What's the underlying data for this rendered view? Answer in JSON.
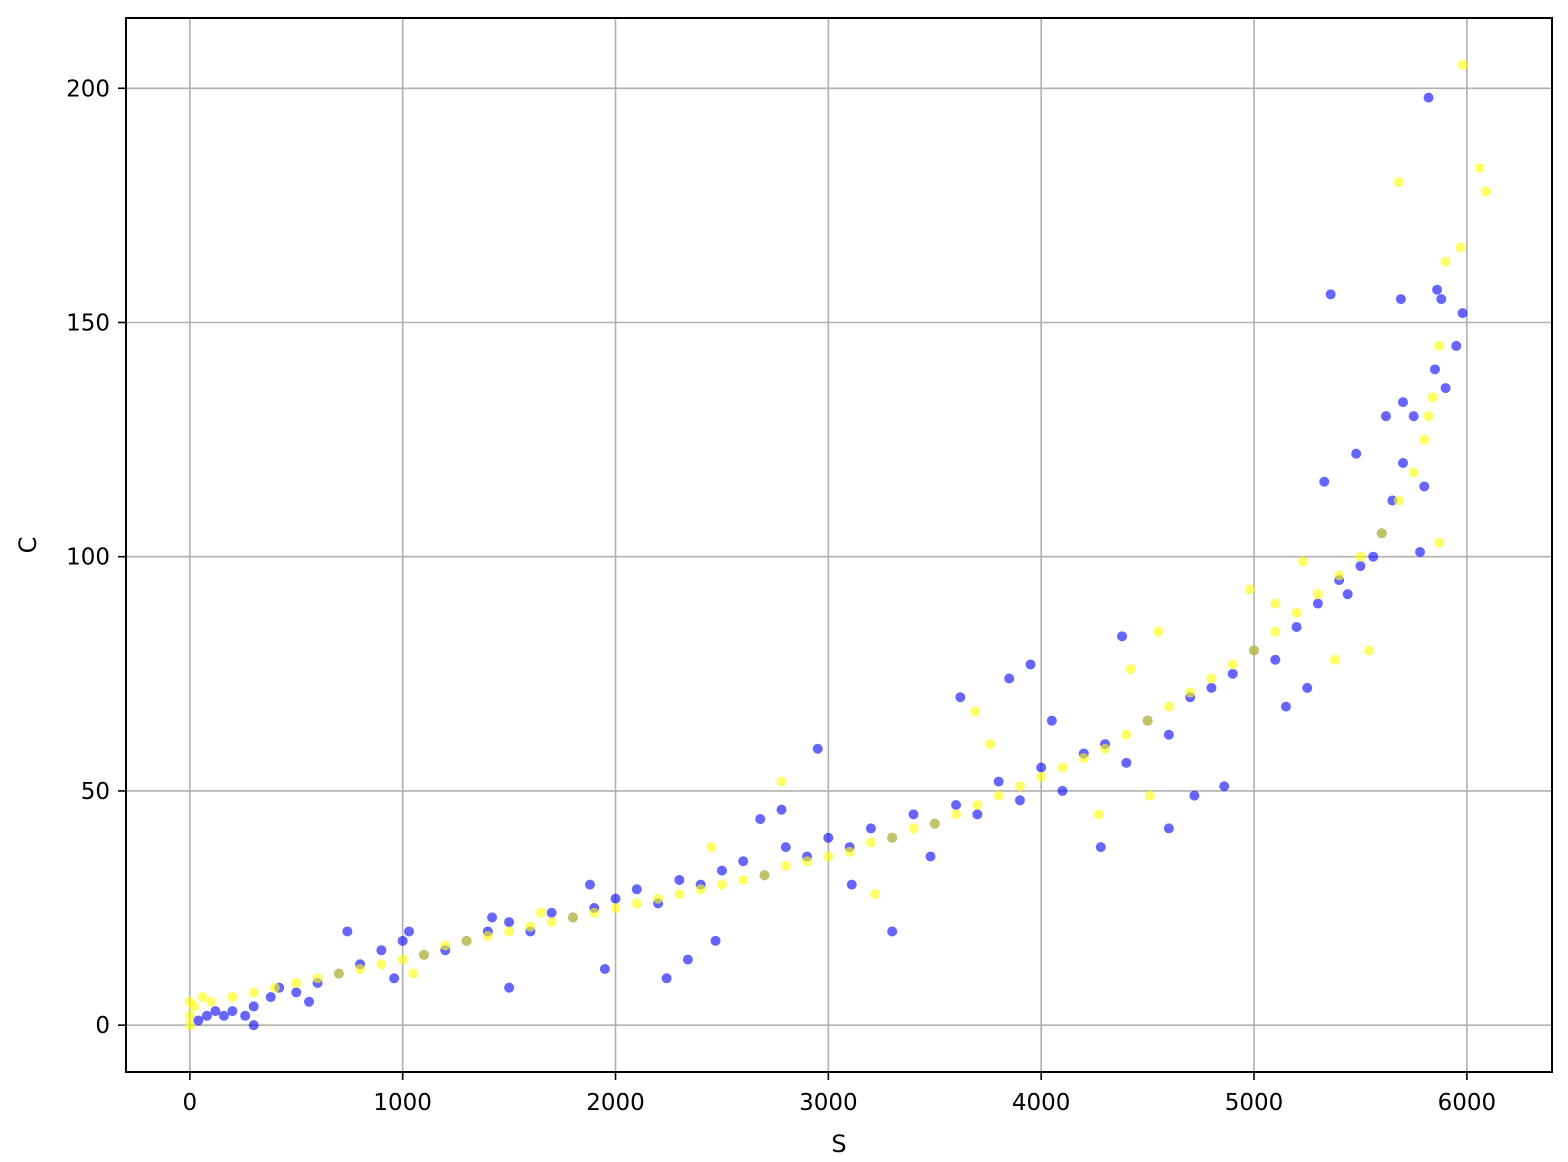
{
  "chart_data": {
    "type": "scatter",
    "title": "",
    "xlabel": "S",
    "ylabel": "C",
    "xlim": [
      -300,
      6400
    ],
    "ylim": [
      -10,
      215
    ],
    "xticks": [
      0,
      1000,
      2000,
      3000,
      4000,
      5000,
      6000
    ],
    "xtick_labels": [
      "0",
      "1000",
      "2000",
      "3000",
      "4000",
      "5000",
      "6000"
    ],
    "yticks": [
      0,
      50,
      100,
      150,
      200
    ],
    "ytick_labels": [
      "0",
      "50",
      "100",
      "150",
      "200"
    ],
    "grid": true,
    "legend": "none",
    "colors": {
      "series_1": "#0000ff",
      "series_2": "#ffff00"
    },
    "series": [
      {
        "color": "#0000ff",
        "points": [
          [
            40,
            1
          ],
          [
            80,
            2
          ],
          [
            120,
            3
          ],
          [
            160,
            2
          ],
          [
            200,
            3
          ],
          [
            260,
            2
          ],
          [
            300,
            4
          ],
          [
            380,
            6
          ],
          [
            420,
            8
          ],
          [
            500,
            7
          ],
          [
            600,
            9
          ],
          [
            700,
            11
          ],
          [
            800,
            13
          ],
          [
            900,
            16
          ],
          [
            1000,
            18
          ],
          [
            1100,
            15
          ],
          [
            1200,
            16
          ],
          [
            1300,
            18
          ],
          [
            1400,
            20
          ],
          [
            1500,
            22
          ],
          [
            1600,
            20
          ],
          [
            1700,
            24
          ],
          [
            1800,
            23
          ],
          [
            1900,
            25
          ],
          [
            2000,
            27
          ],
          [
            2100,
            29
          ],
          [
            2200,
            26
          ],
          [
            2300,
            31
          ],
          [
            2400,
            30
          ],
          [
            2500,
            33
          ],
          [
            2600,
            35
          ],
          [
            2700,
            32
          ],
          [
            2800,
            38
          ],
          [
            2900,
            36
          ],
          [
            3000,
            40
          ],
          [
            3100,
            38
          ],
          [
            3200,
            42
          ],
          [
            3300,
            40
          ],
          [
            3400,
            45
          ],
          [
            3500,
            43
          ],
          [
            3600,
            47
          ],
          [
            3700,
            45
          ],
          [
            3800,
            52
          ],
          [
            3900,
            48
          ],
          [
            4000,
            55
          ],
          [
            4100,
            50
          ],
          [
            4200,
            58
          ],
          [
            4300,
            60
          ],
          [
            4400,
            56
          ],
          [
            4500,
            65
          ],
          [
            4600,
            62
          ],
          [
            4700,
            70
          ],
          [
            4800,
            72
          ],
          [
            4900,
            75
          ],
          [
            5000,
            80
          ],
          [
            5100,
            78
          ],
          [
            5200,
            85
          ],
          [
            5300,
            90
          ],
          [
            5400,
            95
          ],
          [
            5500,
            98
          ],
          [
            5600,
            105
          ],
          [
            5650,
            112
          ],
          [
            5700,
            120
          ],
          [
            5750,
            130
          ],
          [
            5800,
            115
          ],
          [
            5850,
            140
          ],
          [
            5880,
            155
          ],
          [
            5950,
            145
          ],
          [
            5980,
            152
          ],
          [
            5360,
            156
          ],
          [
            5820,
            198
          ],
          [
            5690,
            155
          ],
          [
            5620,
            130
          ],
          [
            5480,
            122
          ],
          [
            1030,
            20
          ],
          [
            2780,
            46
          ],
          [
            3950,
            77
          ],
          [
            4380,
            83
          ],
          [
            2950,
            59
          ],
          [
            4600,
            42
          ],
          [
            740,
            20
          ],
          [
            1500,
            8
          ],
          [
            2340,
            14
          ],
          [
            4860,
            51
          ],
          [
            3300,
            20
          ],
          [
            2240,
            10
          ],
          [
            1950,
            12
          ],
          [
            3850,
            74
          ],
          [
            5250,
            72
          ],
          [
            5150,
            68
          ],
          [
            4050,
            65
          ],
          [
            3620,
            70
          ],
          [
            3110,
            30
          ],
          [
            2680,
            44
          ],
          [
            1880,
            30
          ],
          [
            1420,
            23
          ],
          [
            960,
            10
          ],
          [
            560,
            5
          ],
          [
            300,
            0
          ],
          [
            2470,
            18
          ],
          [
            3480,
            36
          ],
          [
            4280,
            38
          ],
          [
            4720,
            49
          ],
          [
            5440,
            92
          ],
          [
            5780,
            101
          ],
          [
            5860,
            157
          ],
          [
            5900,
            136
          ],
          [
            5700,
            133
          ],
          [
            5560,
            100
          ],
          [
            5330,
            116
          ]
        ]
      },
      {
        "color": "#ffff00",
        "points": [
          [
            0,
            2
          ],
          [
            0,
            5
          ],
          [
            0,
            0
          ],
          [
            20,
            4
          ],
          [
            60,
            6
          ],
          [
            100,
            5
          ],
          [
            200,
            6
          ],
          [
            300,
            7
          ],
          [
            400,
            8
          ],
          [
            500,
            9
          ],
          [
            600,
            10
          ],
          [
            700,
            11
          ],
          [
            800,
            12
          ],
          [
            900,
            13
          ],
          [
            1000,
            14
          ],
          [
            1100,
            15
          ],
          [
            1200,
            17
          ],
          [
            1300,
            18
          ],
          [
            1400,
            19
          ],
          [
            1500,
            20
          ],
          [
            1600,
            21
          ],
          [
            1700,
            22
          ],
          [
            1800,
            23
          ],
          [
            1900,
            24
          ],
          [
            2000,
            25
          ],
          [
            2100,
            26
          ],
          [
            2200,
            27
          ],
          [
            2300,
            28
          ],
          [
            2400,
            29
          ],
          [
            2500,
            30
          ],
          [
            2600,
            31
          ],
          [
            2700,
            32
          ],
          [
            2800,
            34
          ],
          [
            2900,
            35
          ],
          [
            3000,
            36
          ],
          [
            3100,
            37
          ],
          [
            3200,
            39
          ],
          [
            3300,
            40
          ],
          [
            3400,
            42
          ],
          [
            3500,
            43
          ],
          [
            3600,
            45
          ],
          [
            3700,
            47
          ],
          [
            3800,
            49
          ],
          [
            3900,
            51
          ],
          [
            4000,
            53
          ],
          [
            4100,
            55
          ],
          [
            4200,
            57
          ],
          [
            4300,
            59
          ],
          [
            4400,
            62
          ],
          [
            4500,
            65
          ],
          [
            4600,
            68
          ],
          [
            4700,
            71
          ],
          [
            4800,
            74
          ],
          [
            4900,
            77
          ],
          [
            5000,
            80
          ],
          [
            5100,
            84
          ],
          [
            5200,
            88
          ],
          [
            5300,
            92
          ],
          [
            5400,
            96
          ],
          [
            5500,
            100
          ],
          [
            5600,
            105
          ],
          [
            5680,
            112
          ],
          [
            5750,
            118
          ],
          [
            5800,
            125
          ],
          [
            5840,
            134
          ],
          [
            5870,
            145
          ],
          [
            5900,
            163
          ],
          [
            5970,
            166
          ],
          [
            5680,
            180
          ],
          [
            6060,
            183
          ],
          [
            6090,
            178
          ],
          [
            5980,
            205
          ],
          [
            5230,
            99
          ],
          [
            4550,
            84
          ],
          [
            4980,
            93
          ],
          [
            5100,
            90
          ],
          [
            4270,
            45
          ],
          [
            3760,
            60
          ],
          [
            2780,
            52
          ],
          [
            3220,
            28
          ],
          [
            2450,
            38
          ],
          [
            1650,
            24
          ],
          [
            1050,
            11
          ],
          [
            4510,
            49
          ],
          [
            5540,
            80
          ],
          [
            5380,
            78
          ],
          [
            5820,
            130
          ],
          [
            5870,
            103
          ],
          [
            4420,
            76
          ],
          [
            3690,
            67
          ]
        ]
      }
    ]
  }
}
